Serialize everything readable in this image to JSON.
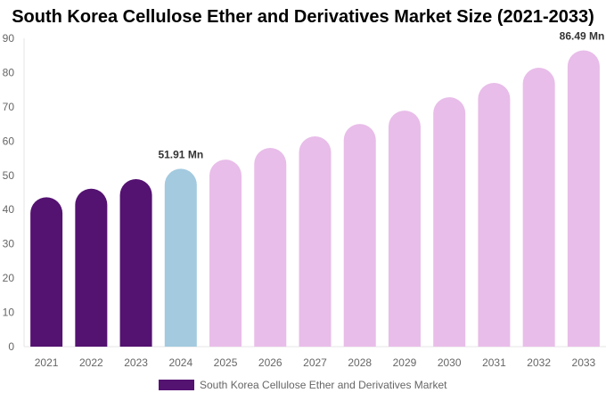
{
  "chart_data": {
    "type": "bar",
    "title": "South Korea Cellulose Ether and Derivatives Market Size (2021-2033)",
    "categories": [
      "2021",
      "2022",
      "2023",
      "2024",
      "2025",
      "2026",
      "2027",
      "2028",
      "2029",
      "2030",
      "2031",
      "2032",
      "2033"
    ],
    "series": [
      {
        "name": "South Korea Cellulose Ether and Derivatives Market",
        "values": [
          43.6,
          46.1,
          48.9,
          51.91,
          54.6,
          58.0,
          61.4,
          65.0,
          68.9,
          72.8,
          77.0,
          81.4,
          86.49
        ]
      }
    ],
    "data_labels": [
      {
        "index": 3,
        "text": "51.91 Mn"
      },
      {
        "index": 12,
        "text": "86.49 Mn"
      }
    ],
    "ylim": [
      0,
      90
    ],
    "yticks": [
      0,
      10,
      20,
      30,
      40,
      50,
      60,
      70,
      80,
      90
    ],
    "grid": false,
    "legend_position": "bottom",
    "colors": {
      "historical": "#541271",
      "current": "#a3cadf",
      "forecast": "#e8bde9"
    },
    "bar_color_groups": [
      "historical",
      "historical",
      "historical",
      "current",
      "forecast",
      "forecast",
      "forecast",
      "forecast",
      "forecast",
      "forecast",
      "forecast",
      "forecast",
      "forecast"
    ]
  }
}
